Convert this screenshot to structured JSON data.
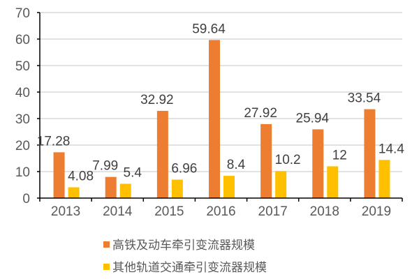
{
  "chart_data": {
    "type": "bar",
    "title": "",
    "xlabel": "",
    "ylabel": "",
    "ylim": [
      0,
      70
    ],
    "yticks": [
      0,
      10,
      20,
      30,
      40,
      50,
      60,
      70
    ],
    "grid": true,
    "legend_position": "bottom",
    "categories": [
      "2013",
      "2014",
      "2015",
      "2016",
      "2017",
      "2018",
      "2019"
    ],
    "series": [
      {
        "name": "高铁及动车牵引变流器规模",
        "color": "#ED7D31",
        "values": [
          17.28,
          7.99,
          32.92,
          59.64,
          27.92,
          25.94,
          33.54
        ],
        "labels": [
          "17.28",
          "7.99",
          "32.92",
          "59.64",
          "27.92",
          "25.94",
          "33.54"
        ]
      },
      {
        "name": "其他轨道交通牵引变流器规模",
        "color": "#FFC000",
        "values": [
          4.08,
          5.4,
          6.96,
          8.4,
          10.2,
          12,
          14.4
        ],
        "labels": [
          "4.08",
          "5.4",
          "6.96",
          "8.4",
          "10.2",
          "12",
          "14.4"
        ]
      }
    ]
  },
  "legend": {
    "items": [
      {
        "label": "高铁及动车牵引变流器规模",
        "color": "#ED7D31"
      },
      {
        "label": "其他轨道交通牵引变流器规模",
        "color": "#FFC000"
      }
    ]
  }
}
